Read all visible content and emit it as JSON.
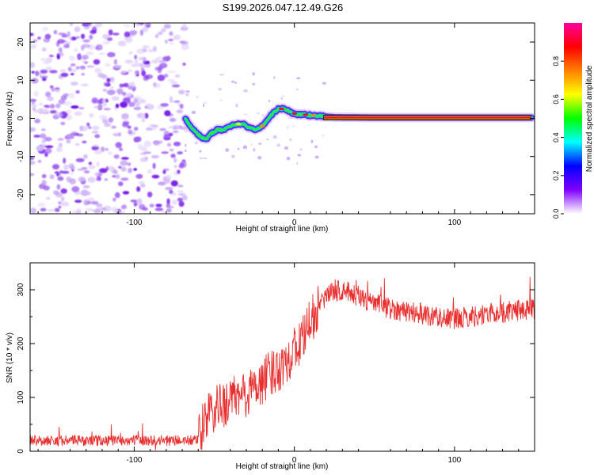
{
  "title": "S199.2026.047.12.49.G26",
  "colors": {
    "snr_line": "#e83030",
    "scatter": "#8a3cf0",
    "track_core": "#e01030",
    "track_outer": "#2a2a2a"
  },
  "chart_data": [
    {
      "type": "heatmap",
      "name": "spectrogram",
      "xlabel": "Height of straight line (km)",
      "ylabel": "Frequency (Hz)",
      "xlim": [
        -165,
        150
      ],
      "ylim": [
        -25,
        25
      ],
      "xticks": [
        -100,
        0,
        100
      ],
      "yticks": [
        -20,
        -10,
        0,
        10,
        20
      ],
      "noise_region_x": [
        -165,
        -68
      ],
      "track": {
        "x": [
          -68,
          -65,
          -62,
          -58,
          -55,
          -52,
          -48,
          -44,
          -40,
          -36,
          -32,
          -28,
          -24,
          -20,
          -16,
          -13,
          -10,
          -6,
          -2,
          2,
          6,
          10,
          14,
          18,
          25,
          50,
          100,
          148
        ],
        "hz": [
          0,
          -2,
          -3.5,
          -5,
          -5.5,
          -4,
          -3,
          -3,
          -2,
          -1.5,
          -1.5,
          -2.5,
          -3,
          -2,
          0,
          1.5,
          2.5,
          2.5,
          1.5,
          1,
          1,
          0.8,
          0.7,
          0.5,
          0.3,
          0.2,
          0.2,
          0.2
        ]
      },
      "colorbar": {
        "label": "Normalized spectral amplitude",
        "range": [
          0,
          1
        ],
        "ticks": [
          0,
          0.2,
          0.4,
          0.6,
          0.8
        ],
        "tick_labels": [
          "0.0",
          "0.2",
          "0.4",
          "0.6",
          "0.8"
        ],
        "colormap": [
          "#ffffff",
          "#8000ff",
          "#0000ff",
          "#00ffff",
          "#00ff00",
          "#ffff00",
          "#ff8000",
          "#ff0000",
          "#ff00a0"
        ]
      }
    },
    {
      "type": "line",
      "name": "snr",
      "xlabel": "Height of straight line (km)",
      "ylabel": "SNR (10 * v/v)",
      "xlim": [
        -165,
        150
      ],
      "ylim": [
        0,
        350
      ],
      "xticks": [
        -100,
        0,
        100
      ],
      "yticks": [
        0,
        100,
        200,
        300
      ],
      "n_points": 1200,
      "trend": {
        "x": [
          -165,
          -60,
          -55,
          -40,
          -30,
          -20,
          -10,
          0,
          8,
          15,
          25,
          35,
          45,
          60,
          80,
          100,
          120,
          150
        ],
        "snr": [
          20,
          20,
          65,
          95,
          105,
          130,
          155,
          185,
          225,
          270,
          300,
          295,
          280,
          265,
          255,
          245,
          255,
          265
        ]
      },
      "noise_amplitude": 20
    }
  ]
}
